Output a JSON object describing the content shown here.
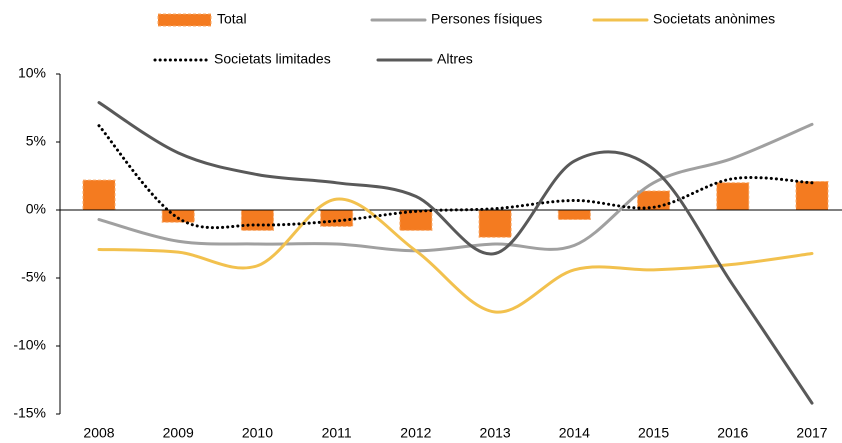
{
  "chart_data": {
    "type": "line",
    "smooth": true,
    "categories": [
      "2008",
      "2009",
      "2010",
      "2011",
      "2012",
      "2013",
      "2014",
      "2015",
      "2016",
      "2017"
    ],
    "series": [
      {
        "name": "Total",
        "type": "bar",
        "color": "#f47b20",
        "values": [
          2.2,
          -0.9,
          -1.5,
          -1.2,
          -1.5,
          -2.0,
          -0.7,
          1.4,
          2.0,
          2.1
        ]
      },
      {
        "name": "Persones físiques",
        "color": "#a0a0a0",
        "values": [
          -0.7,
          -2.3,
          -2.5,
          -2.5,
          -3.0,
          -2.5,
          -2.6,
          2.0,
          3.8,
          6.3
        ]
      },
      {
        "name": "Societats anònimes",
        "color": "#f2c14e",
        "values": [
          -2.9,
          -3.1,
          -4.1,
          0.8,
          -3.0,
          -7.5,
          -4.4,
          -4.4,
          -4.0,
          -3.2
        ]
      },
      {
        "name": "Societats limitades",
        "color": "#000000",
        "style": "dotted",
        "values": [
          6.2,
          -0.6,
          -1.1,
          -0.8,
          -0.1,
          0.1,
          0.7,
          0.2,
          2.3,
          2.0
        ]
      },
      {
        "name": "Altres",
        "color": "#595959",
        "values": [
          7.9,
          4.2,
          2.6,
          2.0,
          1.0,
          -3.2,
          3.6,
          3.0,
          -5.5,
          -14.2
        ]
      }
    ],
    "ylim": [
      -15,
      10
    ],
    "yticks": [
      {
        "value": -15,
        "label": "-15%"
      },
      {
        "value": -10,
        "label": "-10%"
      },
      {
        "value": -5,
        "label": "-5%"
      },
      {
        "value": 0,
        "label": "0%"
      },
      {
        "value": 5,
        "label": "5%"
      },
      {
        "value": 10,
        "label": "10%"
      }
    ]
  }
}
